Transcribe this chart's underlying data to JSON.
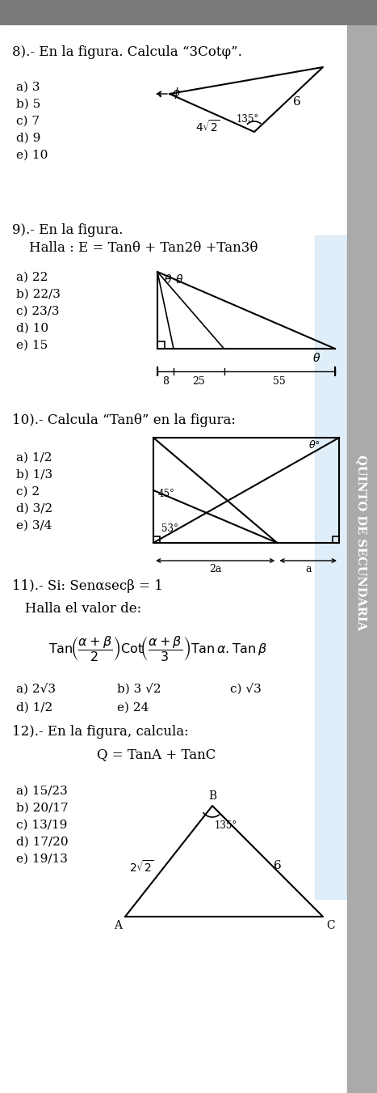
{
  "bg_color": "#ffffff",
  "q8_title": "8).- En la figura. Calcula “3Cotφ”.",
  "q8_options": [
    "a) 3",
    "b) 5",
    "c) 7",
    "d) 9",
    "e) 10"
  ],
  "q9_title": "9).- En la figura.",
  "q9_subtitle": "    Halla : E = Tanθ + Tan2θ +Tan3θ",
  "q9_options": [
    "a) 22",
    "b) 22/3",
    "c) 23/3",
    "d) 10",
    "e) 15"
  ],
  "q10_title": "10).- Calcula “Tanθ” en la figura:",
  "q10_options": [
    "a) 1/2",
    "b) 1/3",
    "c) 2",
    "d) 3/2",
    "e) 3/4"
  ],
  "q11_title": "11).- Si: Senαsecβ = 1",
  "q11_subtitle": "   Halla el valor de:",
  "q11_options_row1": [
    "a) 2√3",
    "b) 3 √2",
    "c) √3"
  ],
  "q11_options_row2": [
    "d) 1/2",
    "e) 24"
  ],
  "q12_title": "12).- En la figura, calcula:",
  "q12_formula": "Q = TanA + TanC",
  "q12_options": [
    "a) 15/23",
    "b) 20/17",
    "c) 13/19",
    "d) 17/20",
    "e) 19/13"
  ],
  "sidebar_text": "QUINTO DE SECUNDARIA"
}
